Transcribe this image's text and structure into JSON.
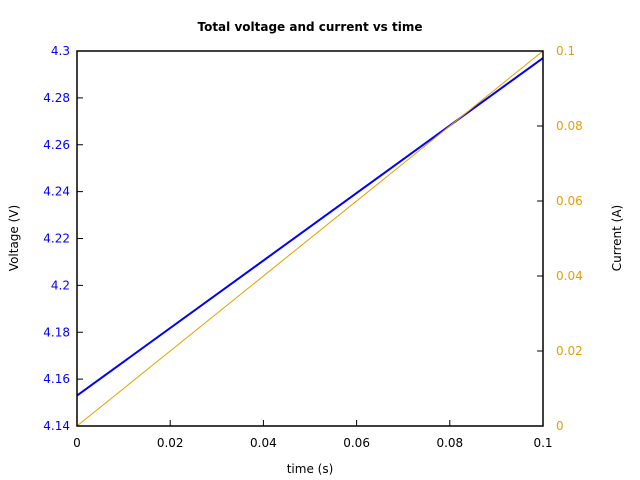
{
  "chart_data": {
    "type": "line",
    "title": "Total voltage and current vs time",
    "xlabel": "time (s)",
    "ylabel": "Voltage (V)",
    "y2label": "Current (A)",
    "xlim": [
      0,
      0.1
    ],
    "ylim": [
      4.14,
      4.3
    ],
    "y2lim": [
      0,
      0.1
    ],
    "grid": false,
    "x_ticks": [
      "0",
      "0.02",
      "0.04",
      "0.06",
      "0.08",
      "0.1"
    ],
    "y_ticks": [
      "4.14",
      "4.16",
      "4.18",
      "4.2",
      "4.22",
      "4.24",
      "4.26",
      "4.28",
      "4.3"
    ],
    "y2_ticks": [
      "0",
      "0.02",
      "0.04",
      "0.06",
      "0.08",
      "0.1"
    ],
    "colors": {
      "voltage": "#0000ff",
      "current": "#e69f00",
      "left_axis_ticks": "#0000ff",
      "right_axis_ticks": "#e69f00"
    },
    "series": [
      {
        "name": "Voltage",
        "axis": "left",
        "x": [
          0,
          0.1
        ],
        "values": [
          4.153,
          4.297
        ]
      },
      {
        "name": "Current",
        "axis": "right",
        "x": [
          0,
          0.1
        ],
        "values": [
          0,
          0.1
        ]
      }
    ]
  }
}
